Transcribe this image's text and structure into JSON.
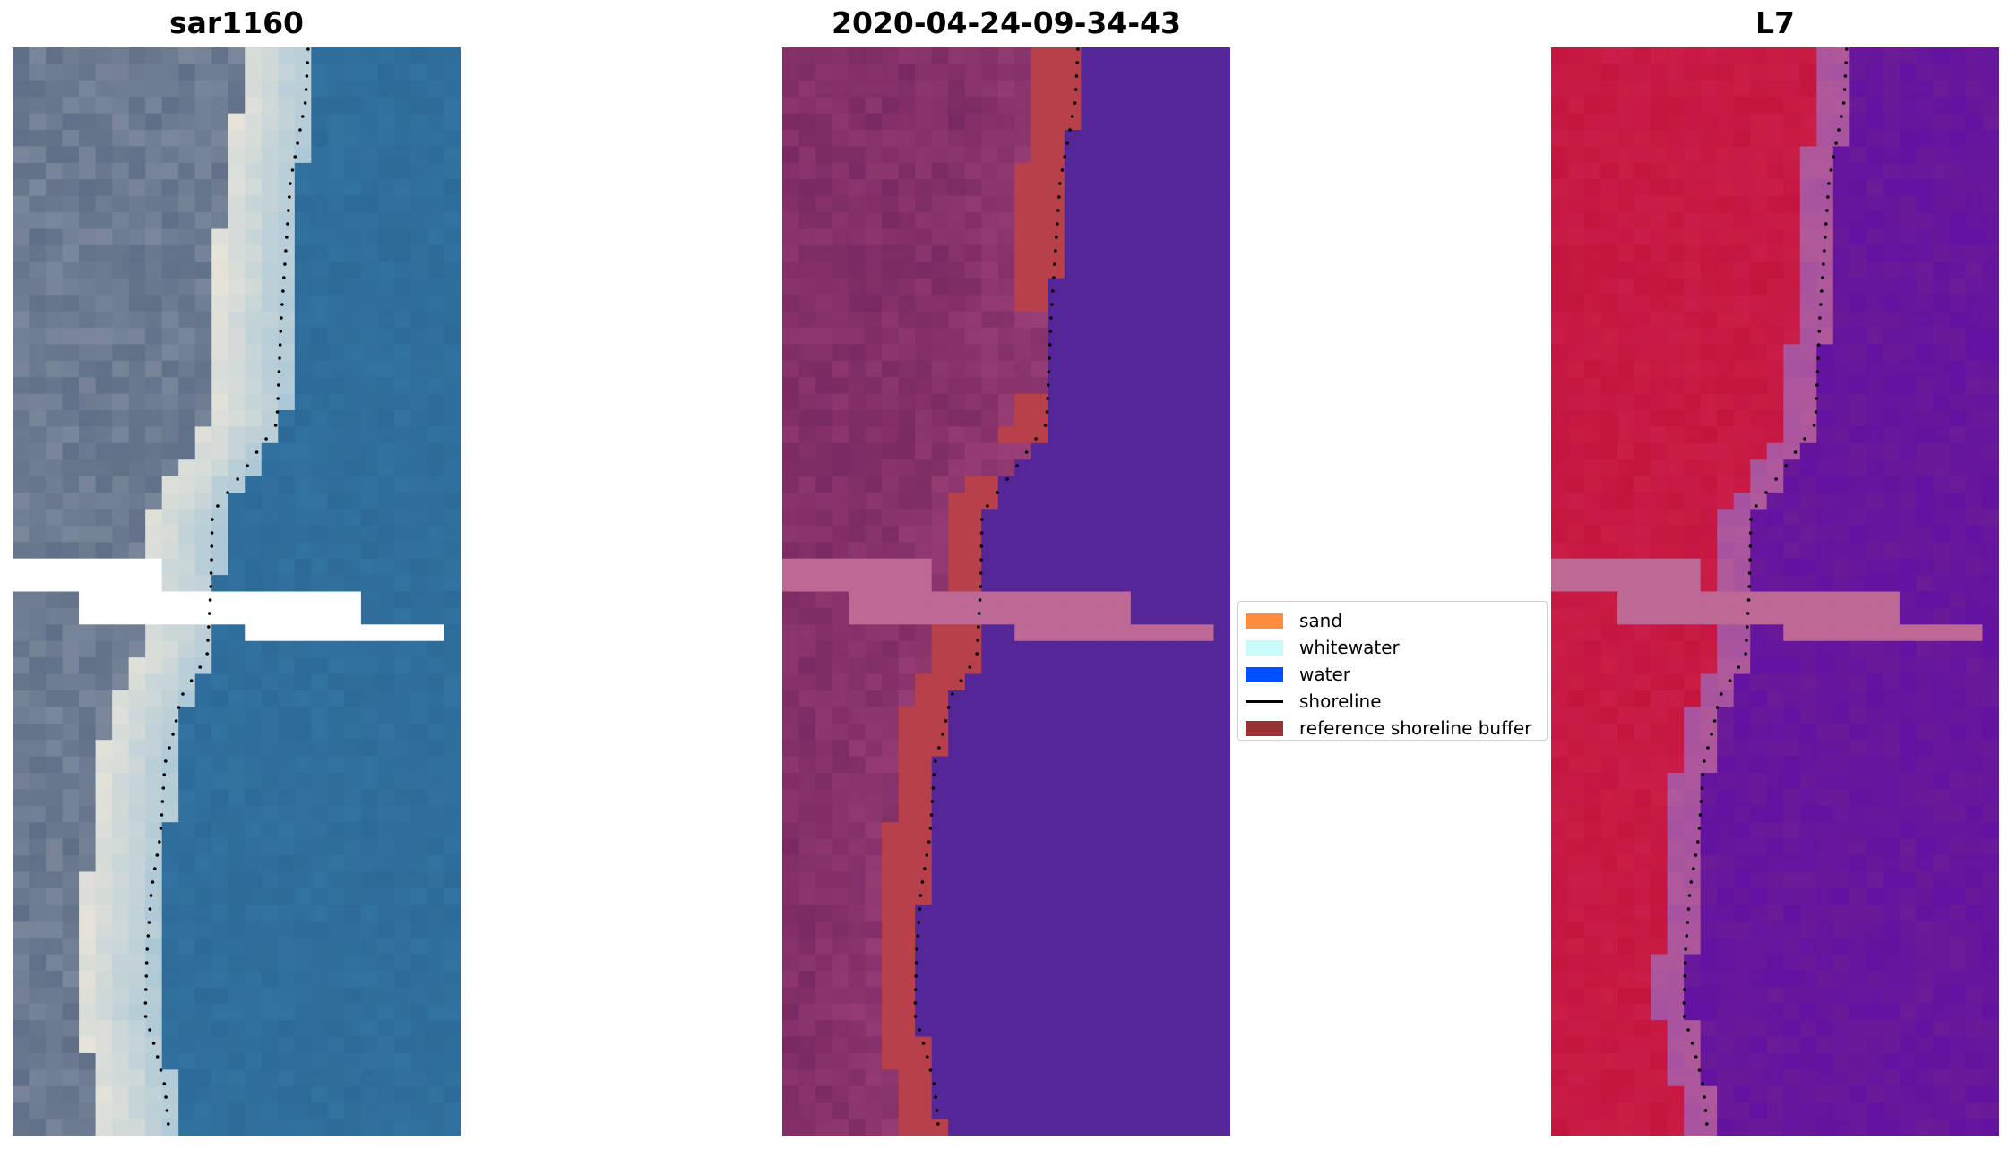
{
  "panels": [
    {
      "title": "sar1160",
      "style": "rgb"
    },
    {
      "title": "2020-04-24-09-34-43",
      "style": "class"
    },
    {
      "title": "L7",
      "style": "ndwi"
    }
  ],
  "legend": {
    "items": [
      {
        "label": "sand",
        "color": "#ff8c3c",
        "type": "patch"
      },
      {
        "label": "whitewater",
        "color": "#c8fafa",
        "type": "patch"
      },
      {
        "label": "water",
        "color": "#0050ff",
        "type": "patch"
      },
      {
        "label": "shoreline",
        "color": "#000000",
        "type": "line"
      },
      {
        "label": "reference shoreline buffer",
        "color": "#993333",
        "type": "patch"
      }
    ]
  },
  "colors": {
    "rgb_land": "#5f6f87",
    "rgb_sand": "#e8e4d8",
    "rgb_water": "#2d6a98",
    "class_land": "#7a2a62",
    "class_buffer": "#b8404a",
    "class_water": "#552697",
    "class_nodata": "#bd6895",
    "ndwi_land": "#c4153f",
    "ndwi_edge": "#b05a9a",
    "ndwi_water": "#6b1a98",
    "ndwi_nodata": "#bd6895"
  }
}
